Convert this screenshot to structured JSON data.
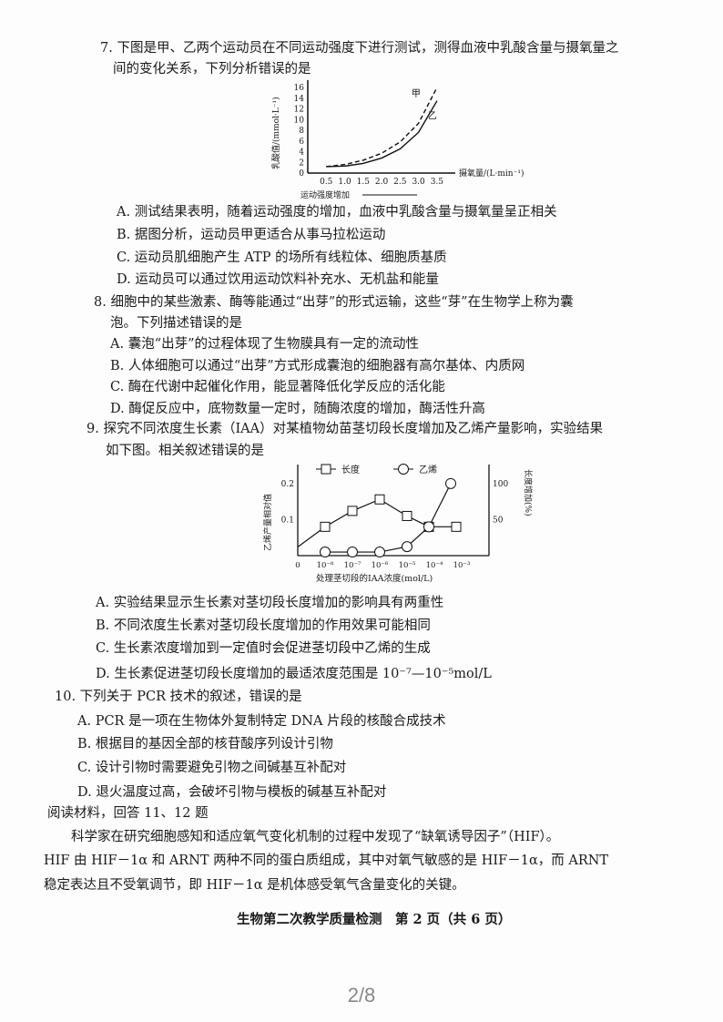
{
  "q7": {
    "stem": [
      "7. 下图是甲、乙两个运动员在不同运动强度下进行测试，测得血液中乳酸含量与摄氧量之",
      "间的变化关系，下列分析错误的是"
    ],
    "options": [
      "A. 测试结果表明，随着运动强度的增加，血液中乳酸含量与摄氧量呈正相关",
      "B. 据图分析，运动员甲更适合从事马拉松运动",
      "C. 运动员肌细胞产生 ATP 的场所有线粒体、细胞质基质",
      "D. 运动员可以通过饮用运动饮料补充水、无机盐和能量"
    ]
  },
  "q8": {
    "stem": [
      "8. 细胞中的某些激素、酶等能通过“出芽”的形式运输，这些“芽”在生物学上称为囊",
      "泡。下列描述错误的是"
    ],
    "options": [
      "A. 囊泡“出芽”的过程体现了生物膜具有一定的流动性",
      "B. 人体细胞可以通过“出芽”方式形成囊泡的细胞器有高尔基体、内质网",
      "C. 酶在代谢中起催化作用，能显著降低化学反应的活化能",
      "D. 酶促反应中，底物数量一定时，随酶浓度的增加，酶活性升高"
    ]
  },
  "q9": {
    "stem": [
      "9. 探究不同浓度生长素（IAA）对某植物幼苗茎切段长度增加及乙烯产量影响，实验结果",
      "如下图。相关叙述错误的是"
    ],
    "options": [
      "A. 实验结果显示生长素对茎切段长度增加的影响具有两重性",
      "B. 不同浓度生长素对茎切段长度增加的作用效果可能相同",
      "C. 生长素浓度增加到一定值时会促进茎切段中乙烯的生成",
      "D. 生长素促进茎切段长度增加的最适浓度范围是 10⁻⁷—10⁻⁵mol/L"
    ]
  },
  "q10": {
    "stem": "10. 下列关于 PCR 技术的叙述，错误的是",
    "options": [
      "A. PCR 是一项在生物体外复制特定 DNA 片段的核酸合成技术",
      "B. 根据目的基因全部的核苷酸序列设计引物",
      "C. 设计引物时需要避免引物之间碱基互补配对",
      "D. 退火温度过高，会破坏引物与模板的碱基互补配对"
    ]
  },
  "reading": {
    "heading": "阅读材料，回答 11、12 题",
    "lines": [
      "科学家在研究细胞感知和适应氧气变化机制的过程中发现了“缺氧诱导因子”（HIF）。",
      "HIF 由 HIF－1α 和 ARNT 两种不同的蛋白质组成，其中对氧气敏感的是 HIF－1α，而 ARNT",
      "稳定表达且不受氧调节，即 HIF－1α 是机体感受氧气含量变化的关键。"
    ]
  },
  "footer": "生物第二次教学质量检测　第 2 页（共 6 页）",
  "pager": "2/8",
  "chart_data": [
    {
      "type": "line",
      "ylabel": "乳酸值/(mmol·L⁻¹)",
      "xlabel": "摄氧量/(L·min⁻¹)",
      "xsublabel": "运动强度增加",
      "xticks": [
        "0.5",
        "1.0",
        "1.5",
        "2.0",
        "2.5",
        "3.0",
        "3.5"
      ],
      "yticks": [
        "0",
        "2",
        "4",
        "6",
        "8",
        "10",
        "12",
        "14",
        "16"
      ],
      "xlim": [
        0,
        3.7
      ],
      "ylim": [
        0,
        16
      ],
      "x": [
        0.5,
        1.0,
        1.5,
        2.0,
        2.5,
        3.0,
        3.5
      ],
      "series": [
        {
          "name": "甲",
          "style": "dashed",
          "values": [
            1.2,
            1.6,
            2.4,
            3.7,
            5.8,
            9.3,
            16
          ]
        },
        {
          "name": "乙",
          "style": "solid",
          "values": [
            1.2,
            1.3,
            1.8,
            2.8,
            4.5,
            7.6,
            13.5
          ]
        }
      ]
    },
    {
      "type": "line",
      "ylabel": "乙烯产量相对值",
      "y2label": "长度增加(%)",
      "xlabel": "处理茎切段的IAA浓度(mol/L)",
      "xticks": [
        "0",
        "10⁻⁸",
        "10⁻⁷",
        "10⁻⁶",
        "10⁻⁵",
        "10⁻⁴",
        "10⁻³"
      ],
      "yticks": [
        "0.1",
        "0.2"
      ],
      "y2ticks": [
        "50",
        "100"
      ],
      "ylim": [
        0,
        0.24
      ],
      "y2lim": [
        0,
        120
      ],
      "legend": "top",
      "series": [
        {
          "name": "长度",
          "marker": "square",
          "axis": "right",
          "x": [
            0,
            1,
            2,
            3,
            4,
            4.8,
            5.8
          ],
          "values": [
            12,
            40,
            62,
            78,
            55,
            40,
            40
          ],
          "markers": [
            false,
            true,
            true,
            true,
            true,
            true,
            true
          ]
        },
        {
          "name": "乙烯",
          "marker": "circle",
          "axis": "left",
          "x": [
            1,
            2,
            3,
            4,
            4.8,
            5.6
          ],
          "values": [
            0.01,
            0.01,
            0.01,
            0.025,
            0.08,
            0.2
          ]
        }
      ]
    }
  ]
}
